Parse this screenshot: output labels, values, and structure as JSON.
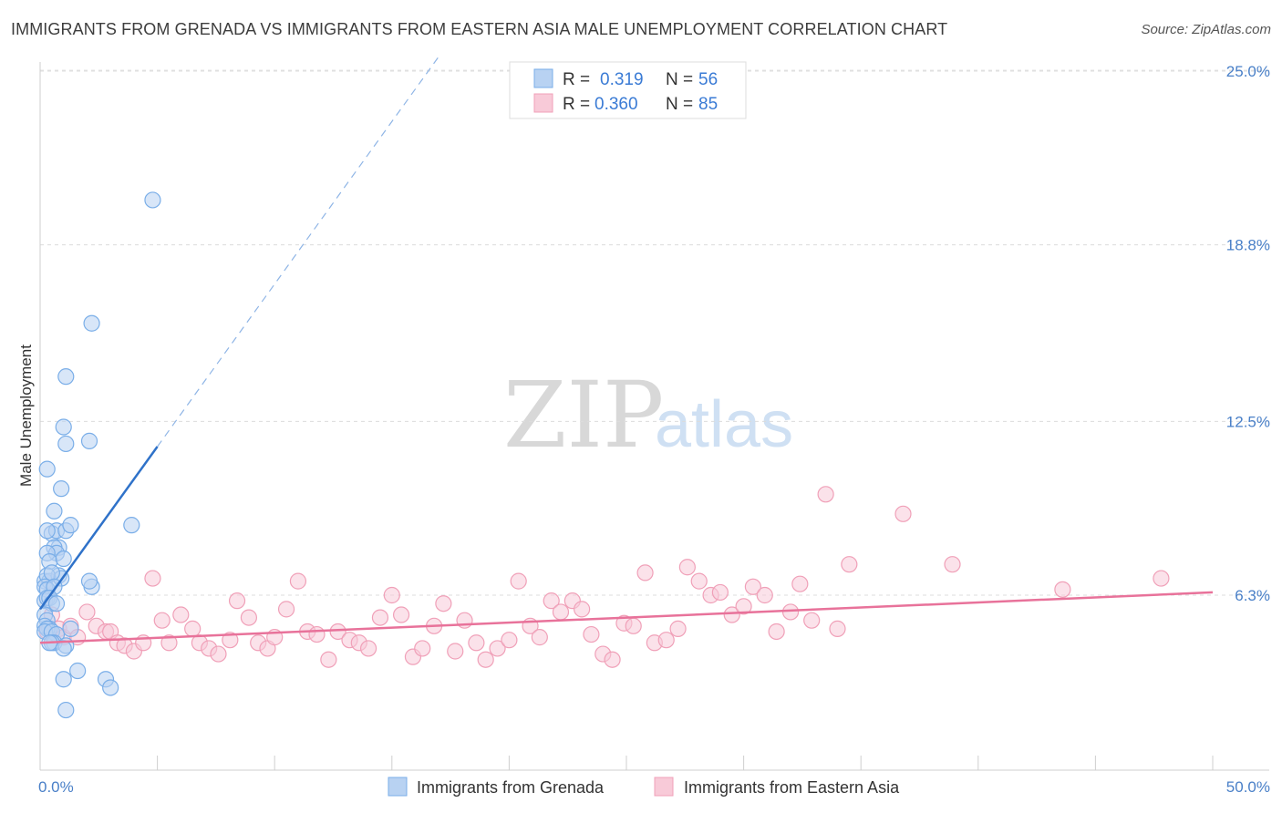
{
  "title": "IMMIGRANTS FROM GRENADA VS IMMIGRANTS FROM EASTERN ASIA MALE UNEMPLOYMENT CORRELATION CHART",
  "source": "Source: ZipAtlas.com",
  "watermark": {
    "zip": "ZIP",
    "atlas": "atlas"
  },
  "chart_data": {
    "type": "scatter",
    "xlabel": "",
    "ylabel": "Male Unemployment",
    "xlim": [
      0,
      50
    ],
    "ylim": [
      0,
      26
    ],
    "x_tick_labels": [
      {
        "value": 0,
        "label": "0.0%"
      },
      {
        "value": 50,
        "label": "50.0%"
      }
    ],
    "x_minor_ticks": [
      5,
      10,
      15,
      20,
      25,
      30,
      35,
      40,
      45,
      50
    ],
    "y_ticks": [
      {
        "value": 6.3,
        "label": "6.3%"
      },
      {
        "value": 12.5,
        "label": "12.5%"
      },
      {
        "value": 18.8,
        "label": "18.8%"
      },
      {
        "value": 25.0,
        "label": "25.0%"
      }
    ],
    "grid": true,
    "legend": {
      "placement": "top-center",
      "items": [
        {
          "r_label": "R = ",
          "r_value": "0.319",
          "n_label": "N = ",
          "n_value": "56"
        },
        {
          "r_label": "R = ",
          "r_value": "0.360",
          "n_label": "N = ",
          "n_value": "85"
        }
      ]
    },
    "series": [
      {
        "name": "Immigrants from Grenada",
        "color": "#7aaee8",
        "fill": "#b8d2f2",
        "line_color": "#2f72c9",
        "trend": {
          "x0": 0.0,
          "y0": 5.8,
          "x1": 5.0,
          "y1": 11.6,
          "x_dash_end": 17.0
        },
        "x": [
          4.8,
          2.2,
          1.1,
          1.0,
          1.1,
          2.1,
          0.3,
          0.6,
          0.9,
          0.5,
          0.7,
          1.1,
          0.3,
          0.8,
          0.6,
          0.7,
          0.3,
          0.4,
          1.0,
          1.3,
          3.9,
          0.2,
          0.4,
          0.8,
          0.9,
          0.3,
          0.5,
          0.2,
          0.3,
          0.6,
          0.2,
          0.3,
          0.4,
          0.5,
          0.7,
          2.2,
          2.1,
          0.2,
          0.3,
          0.4,
          0.2,
          0.3,
          0.2,
          0.5,
          1.3,
          0.7,
          0.6,
          0.5,
          0.4,
          1.1,
          1.0,
          1.6,
          1.0,
          2.8,
          3.0,
          1.1
        ],
        "y": [
          20.4,
          16.0,
          14.1,
          12.3,
          11.7,
          11.8,
          10.8,
          9.3,
          10.1,
          8.5,
          8.6,
          8.6,
          8.6,
          8.0,
          8.0,
          7.8,
          7.8,
          7.5,
          7.6,
          8.8,
          8.8,
          6.8,
          6.8,
          7.0,
          6.9,
          7.0,
          7.1,
          6.6,
          6.5,
          6.6,
          6.1,
          6.2,
          6.2,
          6.0,
          6.0,
          6.6,
          6.8,
          5.6,
          5.4,
          5.1,
          5.2,
          5.1,
          5.0,
          5.0,
          5.1,
          4.9,
          4.6,
          4.6,
          4.6,
          4.5,
          4.4,
          3.6,
          3.3,
          3.3,
          3.0,
          2.2
        ]
      },
      {
        "name": "Immigrants from Eastern Asia",
        "color": "#f0a0b8",
        "fill": "#f8cad8",
        "line_color": "#e8729a",
        "trend": {
          "x0": 0.0,
          "y0": 4.6,
          "x1": 50.0,
          "y1": 6.4
        },
        "x": [
          0.3,
          0.5,
          0.8,
          1.0,
          1.3,
          1.6,
          2.0,
          2.4,
          2.8,
          3.0,
          3.3,
          3.6,
          4.0,
          4.4,
          4.8,
          5.2,
          5.5,
          6.0,
          6.5,
          6.8,
          7.2,
          7.6,
          8.1,
          8.4,
          8.9,
          9.3,
          9.7,
          10.0,
          10.5,
          11.0,
          11.4,
          11.8,
          12.3,
          12.7,
          13.2,
          13.6,
          14.0,
          14.5,
          15.0,
          15.4,
          15.9,
          16.3,
          16.8,
          17.2,
          17.7,
          18.1,
          18.6,
          19.0,
          19.5,
          20.0,
          20.4,
          20.9,
          21.3,
          21.8,
          22.2,
          22.7,
          23.1,
          23.5,
          24.0,
          24.4,
          24.9,
          25.3,
          25.8,
          26.2,
          26.7,
          27.2,
          27.6,
          28.1,
          28.6,
          29.0,
          29.5,
          30.0,
          30.4,
          30.9,
          31.4,
          32.0,
          32.4,
          32.9,
          33.5,
          34.0,
          34.5,
          36.8,
          38.9,
          43.6,
          47.8
        ],
        "y": [
          5.0,
          5.6,
          5.1,
          4.8,
          5.2,
          4.8,
          5.7,
          5.2,
          5.0,
          5.0,
          4.6,
          4.5,
          4.3,
          4.6,
          6.9,
          5.4,
          4.6,
          5.6,
          5.1,
          4.6,
          4.4,
          4.2,
          4.7,
          6.1,
          5.5,
          4.6,
          4.4,
          4.8,
          5.8,
          6.8,
          5.0,
          4.9,
          4.0,
          5.0,
          4.7,
          4.6,
          4.4,
          5.5,
          6.3,
          5.6,
          4.1,
          4.4,
          5.2,
          6.0,
          4.3,
          5.4,
          4.6,
          4.0,
          4.4,
          4.7,
          6.8,
          5.2,
          4.8,
          6.1,
          5.7,
          6.1,
          5.8,
          4.9,
          4.2,
          4.0,
          5.3,
          5.2,
          7.1,
          4.6,
          4.7,
          5.1,
          7.3,
          6.8,
          6.3,
          6.4,
          5.6,
          5.9,
          6.6,
          6.3,
          5.0,
          5.7,
          6.7,
          5.4,
          9.9,
          5.1,
          7.4,
          9.2,
          7.4,
          6.5,
          6.9
        ]
      }
    ]
  },
  "bottom_legend": [
    {
      "label": "Immigrants from Grenada"
    },
    {
      "label": "Immigrants from Eastern Asia"
    }
  ]
}
